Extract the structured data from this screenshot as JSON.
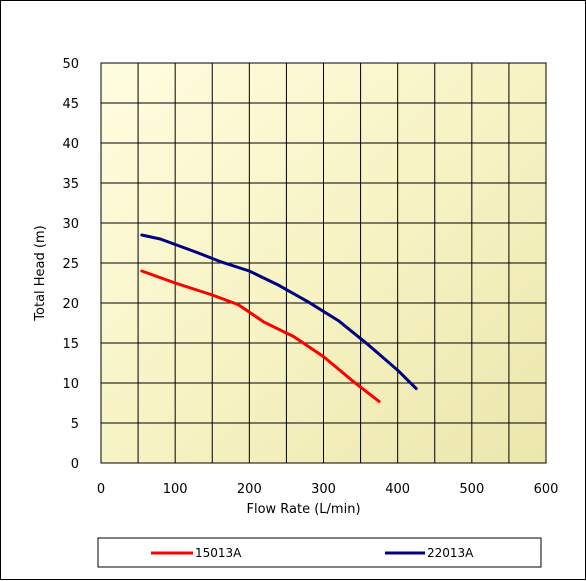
{
  "chart_data": {
    "type": "line",
    "title": "",
    "xlabel": "Flow Rate  (L/min)",
    "ylabel": "Total Head  (m)",
    "xlim": [
      0,
      600
    ],
    "ylim": [
      0,
      50
    ],
    "x_ticks": [
      0,
      100,
      200,
      300,
      400,
      500,
      600
    ],
    "y_ticks": [
      0,
      5,
      10,
      15,
      20,
      25,
      30,
      35,
      40,
      45,
      50
    ],
    "x_tick_labels": [
      "0",
      "100",
      "200",
      "300",
      "400",
      "500",
      "600"
    ],
    "y_tick_labels": [
      "0",
      "5",
      "10",
      "15",
      "20",
      "25",
      "30",
      "35",
      "40",
      "45",
      "50"
    ],
    "grid": true,
    "legend_position": "bottom",
    "plot_background": "#f6f3c2",
    "series": [
      {
        "name": "15013A",
        "color": "#ff0000",
        "x": [
          55,
          100,
          150,
          185,
          220,
          260,
          300,
          340,
          375
        ],
        "y": [
          24,
          22.5,
          21,
          19.8,
          17.6,
          15.8,
          13.3,
          10.2,
          7.7
        ]
      },
      {
        "name": "22013A",
        "color": "#000080",
        "x": [
          55,
          80,
          130,
          160,
          200,
          240,
          280,
          320,
          360,
          400,
          425
        ],
        "y": [
          28.5,
          28,
          26.3,
          25.2,
          24,
          22.2,
          20.1,
          17.8,
          14.8,
          11.6,
          9.3
        ]
      }
    ]
  }
}
